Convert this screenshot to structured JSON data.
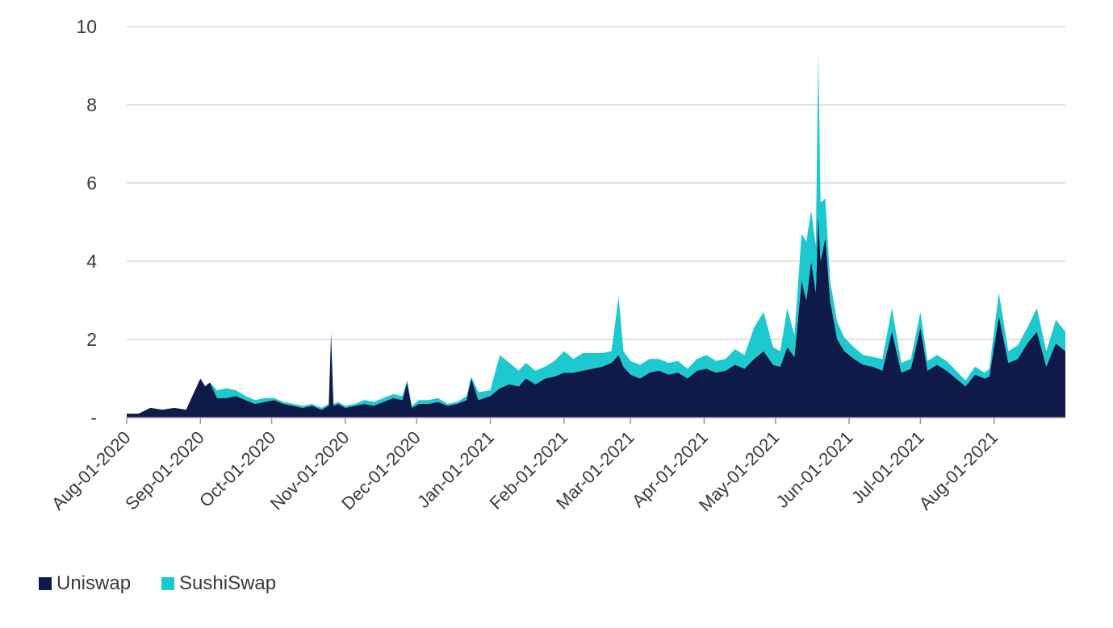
{
  "chart_data": {
    "type": "area",
    "stacked": true,
    "title": "",
    "xlabel": "",
    "ylabel": "",
    "ylim": [
      0,
      10
    ],
    "xlim": [
      "2020-08-01",
      "2021-08-31"
    ],
    "y_ticks": [
      {
        "value": 0,
        "label": "-"
      },
      {
        "value": 2,
        "label": "2"
      },
      {
        "value": 4,
        "label": "4"
      },
      {
        "value": 6,
        "label": "6"
      },
      {
        "value": 8,
        "label": "8"
      },
      {
        "value": 10,
        "label": "10"
      }
    ],
    "x_ticks": [
      {
        "date": "2020-08-01",
        "label": "Aug-01-2020"
      },
      {
        "date": "2020-09-01",
        "label": "Sep-01-2020"
      },
      {
        "date": "2020-10-01",
        "label": "Oct-01-2020"
      },
      {
        "date": "2020-11-01",
        "label": "Nov-01-2020"
      },
      {
        "date": "2020-12-01",
        "label": "Dec-01-2020"
      },
      {
        "date": "2021-01-01",
        "label": "Jan-01-2021"
      },
      {
        "date": "2021-02-01",
        "label": "Feb-01-2021"
      },
      {
        "date": "2021-03-01",
        "label": "Mar-01-2021"
      },
      {
        "date": "2021-04-01",
        "label": "Apr-01-2021"
      },
      {
        "date": "2021-05-01",
        "label": "May-01-2021"
      },
      {
        "date": "2021-06-01",
        "label": "Jun-01-2021"
      },
      {
        "date": "2021-07-01",
        "label": "Jul-01-2021"
      },
      {
        "date": "2021-08-01",
        "label": "Aug-01-2021"
      }
    ],
    "grid": true,
    "legend_position": "bottom-left",
    "x": [
      "2020-08-01",
      "2020-08-06",
      "2020-08-11",
      "2020-08-16",
      "2020-08-21",
      "2020-08-26",
      "2020-08-29",
      "2020-09-01",
      "2020-09-03",
      "2020-09-05",
      "2020-09-08",
      "2020-09-12",
      "2020-09-16",
      "2020-09-20",
      "2020-09-24",
      "2020-09-28",
      "2020-10-02",
      "2020-10-06",
      "2020-10-10",
      "2020-10-14",
      "2020-10-18",
      "2020-10-22",
      "2020-10-25",
      "2020-10-26",
      "2020-10-27",
      "2020-10-29",
      "2020-11-01",
      "2020-11-05",
      "2020-11-09",
      "2020-11-13",
      "2020-11-17",
      "2020-11-21",
      "2020-11-25",
      "2020-11-27",
      "2020-11-29",
      "2020-12-02",
      "2020-12-06",
      "2020-12-10",
      "2020-12-14",
      "2020-12-18",
      "2020-12-22",
      "2020-12-24",
      "2020-12-27",
      "2021-01-01",
      "2021-01-05",
      "2021-01-09",
      "2021-01-13",
      "2021-01-16",
      "2021-01-20",
      "2021-01-24",
      "2021-01-28",
      "2021-02-01",
      "2021-02-05",
      "2021-02-09",
      "2021-02-13",
      "2021-02-17",
      "2021-02-21",
      "2021-02-24",
      "2021-02-26",
      "2021-03-01",
      "2021-03-05",
      "2021-03-09",
      "2021-03-13",
      "2021-03-17",
      "2021-03-21",
      "2021-03-25",
      "2021-03-29",
      "2021-04-02",
      "2021-04-06",
      "2021-04-10",
      "2021-04-14",
      "2021-04-18",
      "2021-04-22",
      "2021-04-26",
      "2021-04-30",
      "2021-05-03",
      "2021-05-06",
      "2021-05-09",
      "2021-05-12",
      "2021-05-14",
      "2021-05-16",
      "2021-05-18",
      "2021-05-19",
      "2021-05-20",
      "2021-05-22",
      "2021-05-24",
      "2021-05-27",
      "2021-05-30",
      "2021-06-03",
      "2021-06-07",
      "2021-06-11",
      "2021-06-15",
      "2021-06-19",
      "2021-06-23",
      "2021-06-27",
      "2021-07-01",
      "2021-07-04",
      "2021-07-08",
      "2021-07-12",
      "2021-07-16",
      "2021-07-20",
      "2021-07-24",
      "2021-07-28",
      "2021-07-30",
      "2021-08-03",
      "2021-08-07",
      "2021-08-11",
      "2021-08-15",
      "2021-08-19",
      "2021-08-23",
      "2021-08-27",
      "2021-08-31"
    ],
    "series": [
      {
        "name": "Uniswap",
        "color": "#0e1a4a",
        "values": [
          0.1,
          0.1,
          0.25,
          0.2,
          0.25,
          0.2,
          0.6,
          1.0,
          0.8,
          0.9,
          0.5,
          0.5,
          0.55,
          0.45,
          0.35,
          0.4,
          0.45,
          0.35,
          0.3,
          0.25,
          0.3,
          0.2,
          0.3,
          2.15,
          0.3,
          0.35,
          0.25,
          0.3,
          0.35,
          0.3,
          0.4,
          0.5,
          0.45,
          0.9,
          0.25,
          0.35,
          0.35,
          0.4,
          0.3,
          0.35,
          0.45,
          1.0,
          0.45,
          0.55,
          0.75,
          0.85,
          0.8,
          1.0,
          0.85,
          1.0,
          1.05,
          1.15,
          1.15,
          1.2,
          1.25,
          1.3,
          1.4,
          1.6,
          1.3,
          1.1,
          1.0,
          1.15,
          1.2,
          1.1,
          1.15,
          1.0,
          1.2,
          1.25,
          1.15,
          1.2,
          1.35,
          1.25,
          1.5,
          1.7,
          1.35,
          1.3,
          1.8,
          1.55,
          3.5,
          3.0,
          4.0,
          3.2,
          5.2,
          4.0,
          4.6,
          3.0,
          2.0,
          1.7,
          1.5,
          1.35,
          1.3,
          1.2,
          2.2,
          1.15,
          1.25,
          2.3,
          1.2,
          1.35,
          1.2,
          1.0,
          0.8,
          1.1,
          1.0,
          1.05,
          2.6,
          1.4,
          1.5,
          1.9,
          2.2,
          1.3,
          1.9,
          1.7
        ]
      },
      {
        "name": "SushiSwap",
        "color": "#1cc9cf",
        "values": [
          0,
          0,
          0,
          0,
          0,
          0,
          0,
          0,
          0,
          0,
          0.2,
          0.25,
          0.15,
          0.1,
          0.1,
          0.1,
          0.05,
          0.05,
          0.05,
          0.05,
          0.05,
          0.05,
          0.05,
          0.05,
          0.05,
          0.05,
          0.05,
          0.05,
          0.1,
          0.1,
          0.1,
          0.1,
          0.1,
          0.05,
          0.05,
          0.1,
          0.1,
          0.1,
          0.05,
          0.05,
          0.1,
          0.05,
          0.2,
          0.15,
          0.85,
          0.55,
          0.4,
          0.4,
          0.35,
          0.3,
          0.4,
          0.55,
          0.35,
          0.45,
          0.4,
          0.35,
          0.3,
          1.5,
          0.4,
          0.35,
          0.35,
          0.35,
          0.3,
          0.3,
          0.3,
          0.25,
          0.3,
          0.35,
          0.3,
          0.3,
          0.4,
          0.35,
          0.8,
          1.0,
          0.45,
          0.4,
          1.0,
          0.55,
          1.2,
          1.5,
          1.3,
          1.2,
          4.1,
          1.5,
          1.0,
          0.5,
          0.45,
          0.35,
          0.3,
          0.25,
          0.25,
          0.3,
          0.6,
          0.25,
          0.25,
          0.4,
          0.25,
          0.25,
          0.25,
          0.2,
          0.15,
          0.2,
          0.15,
          0.2,
          0.6,
          0.3,
          0.35,
          0.4,
          0.6,
          0.4,
          0.6,
          0.5
        ]
      }
    ]
  }
}
